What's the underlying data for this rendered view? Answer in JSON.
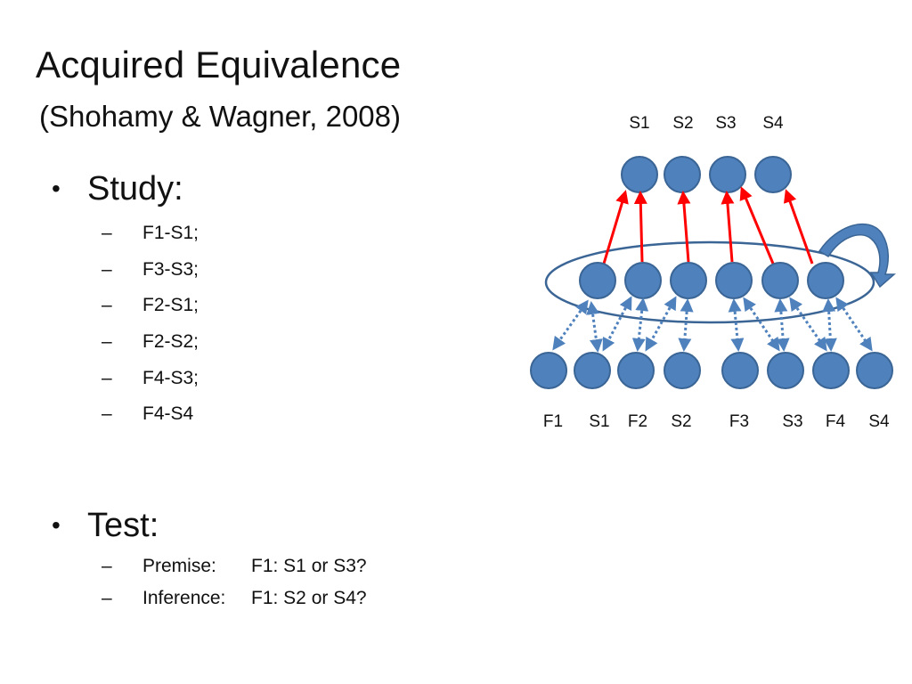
{
  "slide": {
    "title": "Acquired Equivalence",
    "subtitle": "(Shohamy & Wagner, 2008)"
  },
  "study": {
    "heading": "Study:",
    "items": [
      "F1-S1;",
      "F3-S3;",
      "F2-S1;",
      "F2-S2;",
      "F4-S3;",
      "F4-S4"
    ]
  },
  "test": {
    "heading": "Test:",
    "items": [
      {
        "label": "Premise:",
        "value": "F1: S1 or S3?"
      },
      {
        "label": "Inference:",
        "value": "F1: S2 or S4?"
      }
    ]
  },
  "diagram": {
    "top_labels": [
      "S1",
      "S2",
      "S3",
      "S4"
    ],
    "bottom_labels": [
      "F1",
      "S1",
      "F2",
      "S2",
      "F3",
      "S3",
      "F4",
      "S4"
    ],
    "colors": {
      "node_fill": "#4f81bd",
      "node_stroke": "#3a6595",
      "red_arrow": "#ff0000",
      "dotted_arrow": "#4f81bd",
      "ellipse": "#3a6595"
    }
  }
}
